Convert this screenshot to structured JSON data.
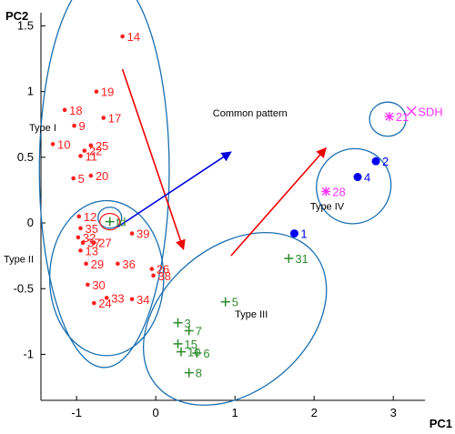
{
  "chart_data": {
    "type": "scatter",
    "xlabel": "PC1",
    "ylabel": "PC2",
    "xlim": [
      -1.45,
      3.4
    ],
    "ylim": [
      -1.35,
      1.6
    ],
    "xticks": [
      -1,
      0,
      1,
      2,
      3
    ],
    "yticks": [
      -1,
      -0.5,
      0,
      0.5,
      1,
      1.5
    ],
    "xtick_labels": [
      "-1",
      "0",
      "1",
      "2",
      "3"
    ],
    "ytick_labels": [
      "-1",
      "-0.5",
      "0",
      "0.5",
      "1",
      "1.5"
    ],
    "grid": false,
    "colors": {
      "red": "#ff1e1e",
      "green": "#2e8b2e",
      "blue": "#0000ee",
      "magenta": "#ff33ff",
      "ellipse": "#1a6fb0",
      "arrow_red": "#ee0000",
      "arrow_blue": "#0000dd"
    },
    "series": [
      {
        "marker": "dot",
        "color": "red",
        "points": [
          {
            "label": "14",
            "x": -0.42,
            "y": 1.42
          },
          {
            "label": "19",
            "x": -0.75,
            "y": 1.0
          },
          {
            "label": "18",
            "x": -1.15,
            "y": 0.86
          },
          {
            "label": "17",
            "x": -0.66,
            "y": 0.8
          },
          {
            "label": "9",
            "x": -1.03,
            "y": 0.74
          },
          {
            "label": "10",
            "x": -1.3,
            "y": 0.6
          },
          {
            "label": "25",
            "x": -0.82,
            "y": 0.59
          },
          {
            "label": "22",
            "x": -0.9,
            "y": 0.55
          },
          {
            "label": "11",
            "x": -0.95,
            "y": 0.51
          },
          {
            "label": "20",
            "x": -0.82,
            "y": 0.36
          },
          {
            "label": "5",
            "x": -1.04,
            "y": 0.34
          },
          {
            "label": "12",
            "x": -0.97,
            "y": 0.05
          },
          {
            "label": "35",
            "x": -0.95,
            "y": -0.04
          },
          {
            "label": "39",
            "x": -0.3,
            "y": -0.08
          },
          {
            "label": "32",
            "x": -0.98,
            "y": -0.11
          },
          {
            "label": "37",
            "x": -0.92,
            "y": -0.15
          },
          {
            "label": "27",
            "x": -0.78,
            "y": -0.15
          },
          {
            "label": "13",
            "x": -0.95,
            "y": -0.21
          },
          {
            "label": "29",
            "x": -0.88,
            "y": -0.31
          },
          {
            "label": "36",
            "x": -0.48,
            "y": -0.31
          },
          {
            "label": "26",
            "x": -0.05,
            "y": -0.35
          },
          {
            "label": "38",
            "x": -0.03,
            "y": -0.4
          },
          {
            "label": "30",
            "x": -0.86,
            "y": -0.47
          },
          {
            "label": "33",
            "x": -0.62,
            "y": -0.57
          },
          {
            "label": "34",
            "x": -0.3,
            "y": -0.58
          },
          {
            "label": "24",
            "x": -0.78,
            "y": -0.61
          }
        ]
      },
      {
        "marker": "plus",
        "color": "green",
        "points": [
          {
            "label": "td",
            "x": -0.58,
            "y": 0.01
          },
          {
            "label": "31",
            "x": 1.68,
            "y": -0.27
          },
          {
            "label": "5",
            "x": 0.88,
            "y": -0.6
          },
          {
            "label": "3",
            "x": 0.28,
            "y": -0.76
          },
          {
            "label": "7",
            "x": 0.42,
            "y": -0.82
          },
          {
            "label": "15",
            "x": 0.28,
            "y": -0.92
          },
          {
            "label": "10",
            "x": 0.32,
            "y": -0.98
          },
          {
            "label": "6",
            "x": 0.52,
            "y": -0.99
          },
          {
            "label": "8",
            "x": 0.42,
            "y": -1.14
          }
        ]
      },
      {
        "marker": "dot",
        "color": "blue",
        "points": [
          {
            "label": "1",
            "x": 1.75,
            "y": -0.08
          },
          {
            "label": "2",
            "x": 2.78,
            "y": 0.47
          },
          {
            "label": "4",
            "x": 2.55,
            "y": 0.35
          }
        ]
      },
      {
        "marker": "star",
        "color": "magenta",
        "points": [
          {
            "label": "21",
            "x": 2.95,
            "y": 0.81
          },
          {
            "label": "28",
            "x": 2.15,
            "y": 0.24
          }
        ]
      },
      {
        "marker": "cross",
        "color": "magenta",
        "points": [
          {
            "label": "SDH",
            "x": 3.23,
            "y": 0.85
          }
        ]
      }
    ],
    "annotations": [
      {
        "text": "Type I",
        "x": -1.6,
        "y": 0.7
      },
      {
        "text": "Type II",
        "x": -2.05,
        "y": -0.3
      },
      {
        "text": "Type III",
        "x": 1.0,
        "y": -0.72
      },
      {
        "text": "Type IV",
        "x": 1.95,
        "y": 0.1
      },
      {
        "text": "Common pattern",
        "x": 0.72,
        "y": 0.81
      }
    ],
    "ellipses": [
      {
        "cx": -0.65,
        "cy": 0.4,
        "rx": 0.82,
        "ry": 1.5
      },
      {
        "cx": -0.62,
        "cy": -0.42,
        "rx": 0.72,
        "ry": 0.59
      },
      {
        "cx": 1.0,
        "cy": -0.73,
        "rx": 1.3,
        "ry": 0.55,
        "angle": -40
      },
      {
        "cx": 2.5,
        "cy": 0.28,
        "rx": 0.48,
        "ry": 0.28,
        "angle": -52
      },
      {
        "cx": 2.93,
        "cy": 0.79,
        "rx": 0.23,
        "ry": 0.13
      },
      {
        "cx": -0.58,
        "cy": 0.04,
        "rx": 0.15,
        "ry": 0.08
      }
    ],
    "arrows": [
      {
        "color": "arrow_red",
        "x1": -0.42,
        "y1": 1.17,
        "x2": 0.35,
        "y2": -0.2
      },
      {
        "color": "arrow_blue",
        "x1": -0.48,
        "y1": -0.03,
        "x2": 0.95,
        "y2": 0.54
      },
      {
        "color": "arrow_red",
        "x1": 0.95,
        "y1": -0.25,
        "x2": 2.15,
        "y2": 0.57
      }
    ]
  }
}
